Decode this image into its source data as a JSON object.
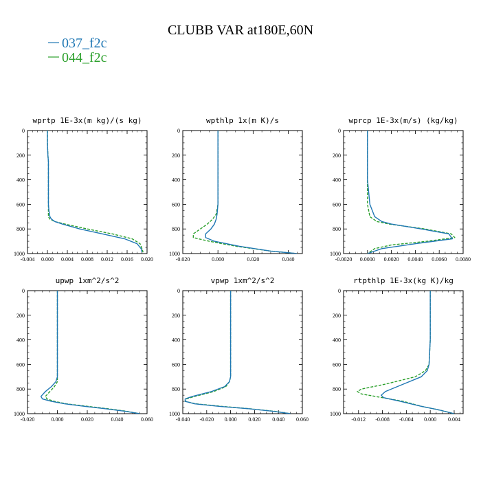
{
  "figure": {
    "title": "CLUBB VAR at180E,60N",
    "legend": [
      {
        "name": "037_f2c",
        "color": "#1f77b4",
        "dash": "solid"
      },
      {
        "name": "044_f2c",
        "color": "#2ca02c",
        "dash": "dashed"
      }
    ]
  },
  "chart_data": [
    {
      "type": "line",
      "title": "wprtp  1E-3x(m kg)/(s kg)",
      "xlim": [
        -0.004,
        0.02
      ],
      "ylim": [
        1000,
        0
      ],
      "xticks": [
        -0.004,
        0.0,
        0.004,
        0.008,
        0.012,
        0.016,
        0.02
      ],
      "xtick_labels": [
        "-0.004",
        "0.000",
        "0.004",
        "0.008",
        "0.012",
        "0.016",
        "0.020"
      ],
      "yticks": [
        0,
        200,
        400,
        600,
        800,
        1000
      ],
      "ytick_labels": [
        "0",
        "200",
        "400",
        "600",
        "800",
        "1000"
      ],
      "series": [
        {
          "name": "037_f2c",
          "y": [
            0,
            100,
            200,
            250,
            300,
            400,
            500,
            600,
            650,
            700,
            720,
            740,
            760,
            800,
            840,
            880,
            920,
            960,
            990
          ],
          "x": [
            0.0,
            0.0,
            0.0001,
            0.0002,
            0.0002,
            0.0002,
            0.0002,
            0.0002,
            0.0003,
            0.0005,
            0.0008,
            0.0015,
            0.003,
            0.0065,
            0.011,
            0.0155,
            0.018,
            0.0188,
            0.019
          ]
        },
        {
          "name": "044_f2c",
          "y": [
            0,
            100,
            200,
            250,
            300,
            400,
            500,
            600,
            650,
            700,
            720,
            740,
            760,
            800,
            840,
            880,
            920,
            960,
            990
          ],
          "x": [
            0.0,
            0.0,
            0.0001,
            0.0002,
            0.0002,
            0.0002,
            0.0002,
            0.0002,
            0.0002,
            0.0002,
            0.0005,
            0.0015,
            0.0035,
            0.008,
            0.013,
            0.017,
            0.0186,
            0.019,
            0.0192
          ]
        }
      ]
    },
    {
      "type": "line",
      "title": "wpthlp  1x(m K)/s",
      "xlim": [
        -0.02,
        0.048
      ],
      "ylim": [
        1000,
        0
      ],
      "xticks": [
        -0.02,
        0.0,
        0.02,
        0.04
      ],
      "xtick_labels": [
        "-0.020",
        "0.000",
        "0.020",
        "0.040"
      ],
      "yticks": [
        0,
        200,
        400,
        600,
        800,
        1000
      ],
      "ytick_labels": [
        "0",
        "200",
        "400",
        "600",
        "800",
        "1000"
      ],
      "series": [
        {
          "name": "037_f2c",
          "y": [
            0,
            200,
            400,
            600,
            680,
            720,
            760,
            800,
            840,
            870,
            900,
            940,
            980,
            1000
          ],
          "x": [
            0.0,
            0.0,
            0.0,
            0.0,
            -0.0005,
            -0.001,
            -0.002,
            -0.004,
            -0.007,
            -0.007,
            -0.002,
            0.012,
            0.03,
            0.045
          ]
        },
        {
          "name": "044_f2c",
          "y": [
            0,
            200,
            400,
            600,
            680,
            720,
            760,
            800,
            840,
            870,
            900,
            940,
            980,
            1000
          ],
          "x": [
            0.0,
            0.0,
            0.0,
            0.0,
            -0.001,
            -0.003,
            -0.006,
            -0.01,
            -0.014,
            -0.014,
            -0.005,
            0.01,
            0.03,
            0.045
          ]
        }
      ]
    },
    {
      "type": "line",
      "title": "wprcp  1E-3x(m/s) (kg/kg)",
      "xlim": [
        -0.002,
        0.008
      ],
      "ylim": [
        1000,
        0
      ],
      "xticks": [
        -0.002,
        0.0,
        0.002,
        0.004,
        0.006,
        0.008
      ],
      "xtick_labels": [
        "-0.0020",
        "0.0000",
        "0.0020",
        "0.0040",
        "0.0060",
        "0.0080"
      ],
      "yticks": [
        0,
        200,
        400,
        600,
        800,
        1000
      ],
      "ytick_labels": [
        "0",
        "200",
        "400",
        "600",
        "800",
        "1000"
      ],
      "series": [
        {
          "name": "037_f2c",
          "y": [
            0,
            200,
            400,
            500,
            600,
            700,
            740,
            760,
            800,
            840,
            880,
            920,
            960,
            1000
          ],
          "x": [
            0.0,
            0.0,
            0.0,
            0.0001,
            0.0002,
            0.0006,
            0.0012,
            0.002,
            0.0045,
            0.0068,
            0.0071,
            0.004,
            0.0012,
            0.0
          ]
        },
        {
          "name": "044_f2c",
          "y": [
            0,
            200,
            400,
            500,
            600,
            700,
            740,
            760,
            800,
            840,
            870,
            900,
            930,
            960,
            1000
          ],
          "x": [
            0.0,
            0.0,
            0.0,
            0.0,
            0.0,
            0.0002,
            0.0008,
            0.0018,
            0.0048,
            0.007,
            0.0073,
            0.005,
            0.002,
            0.0006,
            0.0
          ]
        }
      ]
    },
    {
      "type": "line",
      "title": "upwp  1xm^2/s^2",
      "xlim": [
        -0.02,
        0.06
      ],
      "ylim": [
        1000,
        0
      ],
      "xticks": [
        -0.02,
        0.0,
        0.02,
        0.04,
        0.06
      ],
      "xtick_labels": [
        "-0.020",
        "0.000",
        "0.020",
        "0.040",
        "0.060"
      ],
      "yticks": [
        0,
        200,
        400,
        600,
        800,
        1000
      ],
      "ytick_labels": [
        "0",
        "200",
        "400",
        "600",
        "800",
        "1000"
      ],
      "series": [
        {
          "name": "037_f2c",
          "y": [
            0,
            200,
            400,
            600,
            700,
            740,
            780,
            820,
            860,
            880,
            900,
            920,
            940,
            960,
            980,
            1000
          ],
          "x": [
            0.0,
            0.0,
            0.0,
            0.0,
            0.0,
            -0.001,
            -0.004,
            -0.008,
            -0.011,
            -0.01,
            -0.004,
            0.005,
            0.018,
            0.032,
            0.045,
            0.055
          ]
        },
        {
          "name": "044_f2c",
          "y": [
            0,
            200,
            400,
            600,
            700,
            740,
            780,
            820,
            860,
            880,
            900,
            920,
            940,
            960,
            980,
            1000
          ],
          "x": [
            0.0,
            0.0,
            0.0,
            0.0,
            0.0,
            0.0,
            -0.002,
            -0.005,
            -0.008,
            -0.007,
            -0.002,
            0.006,
            0.02,
            0.034,
            0.046,
            0.055
          ]
        }
      ]
    },
    {
      "type": "line",
      "title": "vpwp  1xm^2/s^2",
      "xlim": [
        -0.04,
        0.06
      ],
      "ylim": [
        1000,
        0
      ],
      "xticks": [
        -0.04,
        -0.02,
        0.0,
        0.02,
        0.04,
        0.06
      ],
      "xtick_labels": [
        "-0.040",
        "-0.020",
        "0.000",
        "0.020",
        "0.040",
        "0.060"
      ],
      "yticks": [
        0,
        200,
        400,
        600,
        800,
        1000
      ],
      "ytick_labels": [
        "0",
        "200",
        "400",
        "600",
        "800",
        "1000"
      ],
      "series": [
        {
          "name": "037_f2c",
          "y": [
            0,
            200,
            400,
            600,
            700,
            740,
            780,
            820,
            860,
            880,
            900,
            920,
            940,
            960,
            980,
            1000
          ],
          "x": [
            0.0,
            0.0,
            0.0,
            0.0,
            0.0,
            -0.001,
            -0.005,
            -0.016,
            -0.032,
            -0.038,
            -0.038,
            -0.03,
            -0.01,
            0.015,
            0.035,
            0.05
          ]
        },
        {
          "name": "044_f2c",
          "y": [
            0,
            200,
            400,
            600,
            700,
            740,
            780,
            820,
            860,
            880,
            900,
            920,
            940,
            960,
            980,
            1000
          ],
          "x": [
            0.0,
            0.0,
            0.0,
            0.0,
            0.0,
            -0.001,
            -0.004,
            -0.014,
            -0.03,
            -0.037,
            -0.038,
            -0.029,
            -0.008,
            0.016,
            0.036,
            0.05
          ]
        }
      ]
    },
    {
      "type": "line",
      "title": "rtpthlp  1E-3x(kg K)/kg",
      "xlim": [
        -0.0145,
        0.0055
      ],
      "ylim": [
        1000,
        0
      ],
      "xticks": [
        -0.012,
        -0.008,
        -0.004,
        0.0,
        0.004
      ],
      "xtick_labels": [
        "-0.012",
        "-0.008",
        "-0.004",
        "0.000",
        "0.004"
      ],
      "yticks": [
        0,
        200,
        400,
        600,
        800,
        1000
      ],
      "ytick_labels": [
        "0",
        "200",
        "400",
        "600",
        "800",
        "1000"
      ],
      "series": [
        {
          "name": "037_f2c",
          "y": [
            0,
            200,
            400,
            600,
            650,
            700,
            760,
            820,
            850,
            870,
            900,
            940,
            970,
            1000
          ],
          "x": [
            0.0,
            0.0,
            0.0,
            -0.0002,
            -0.0005,
            -0.0015,
            -0.0045,
            -0.0075,
            -0.0082,
            -0.0078,
            -0.005,
            -0.0015,
            0.0015,
            0.004
          ]
        },
        {
          "name": "044_f2c",
          "y": [
            0,
            200,
            400,
            600,
            650,
            700,
            760,
            800,
            820,
            840,
            870,
            900,
            940,
            970,
            1000
          ],
          "x": [
            0.0,
            0.0,
            0.0,
            -0.0002,
            -0.0008,
            -0.0025,
            -0.0075,
            -0.0115,
            -0.0122,
            -0.0115,
            -0.008,
            -0.0045,
            -0.0015,
            0.0015,
            0.004
          ]
        }
      ]
    }
  ]
}
